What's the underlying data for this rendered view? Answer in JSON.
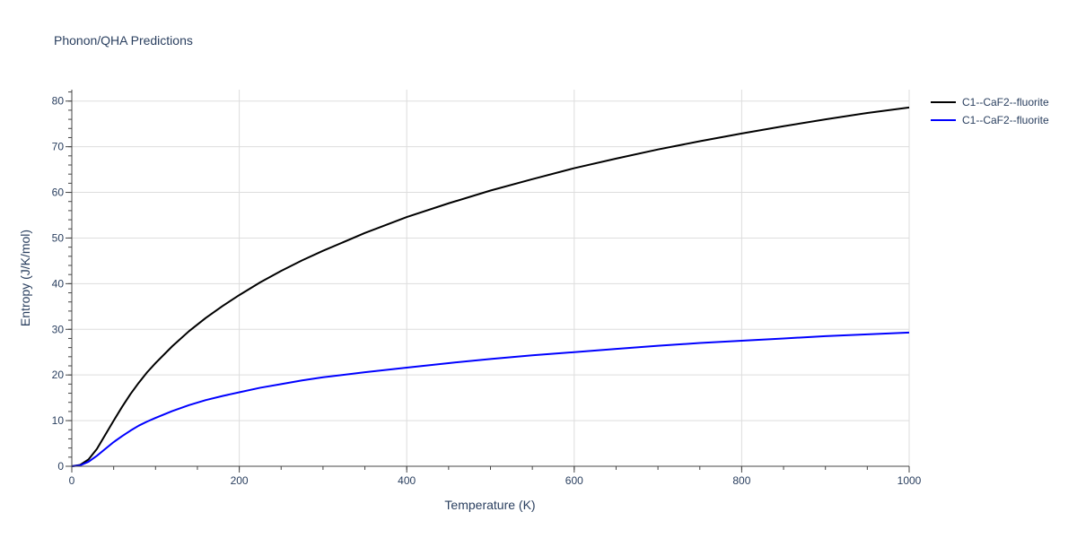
{
  "chart_data": {
    "type": "line",
    "title": "Phonon/QHA Predictions",
    "xlabel": "Temperature (K)",
    "ylabel": "Entropy (J/K/mol)",
    "xlim": [
      0,
      1000
    ],
    "ylim": [
      0,
      82.5
    ],
    "xticks": [
      0,
      200,
      400,
      600,
      800,
      1000
    ],
    "yticks": [
      0,
      10,
      20,
      30,
      40,
      50,
      60,
      70,
      80
    ],
    "grid": true,
    "legend_position": "top-right",
    "series": [
      {
        "name": "C1--CaF2--fluorite",
        "color": "#000000",
        "x": [
          0,
          10,
          20,
          30,
          40,
          50,
          60,
          70,
          80,
          90,
          100,
          120,
          140,
          160,
          180,
          200,
          225,
          250,
          275,
          300,
          350,
          400,
          450,
          500,
          550,
          600,
          650,
          700,
          750,
          800,
          850,
          900,
          950,
          1000
        ],
        "y": [
          0,
          0.3,
          1.5,
          3.8,
          6.9,
          10.0,
          13.0,
          15.8,
          18.3,
          20.6,
          22.6,
          26.3,
          29.6,
          32.5,
          35.1,
          37.5,
          40.3,
          42.8,
          45.1,
          47.2,
          51.1,
          54.6,
          57.6,
          60.4,
          62.9,
          65.3,
          67.4,
          69.4,
          71.2,
          72.9,
          74.5,
          76.0,
          77.4,
          78.6
        ]
      },
      {
        "name": "C1--CaF2--fluorite",
        "color": "#0000ff",
        "x": [
          0,
          10,
          20,
          30,
          40,
          50,
          60,
          70,
          80,
          90,
          100,
          120,
          140,
          160,
          180,
          200,
          225,
          250,
          275,
          300,
          350,
          400,
          450,
          500,
          550,
          600,
          650,
          700,
          750,
          800,
          850,
          900,
          950,
          1000
        ],
        "y": [
          0,
          0.2,
          1.0,
          2.3,
          3.8,
          5.3,
          6.6,
          7.8,
          8.9,
          9.8,
          10.6,
          12.1,
          13.4,
          14.5,
          15.4,
          16.2,
          17.2,
          18.0,
          18.8,
          19.5,
          20.6,
          21.6,
          22.6,
          23.5,
          24.3,
          25.0,
          25.7,
          26.4,
          27.0,
          27.5,
          28.0,
          28.5,
          28.9,
          29.3
        ]
      }
    ]
  }
}
